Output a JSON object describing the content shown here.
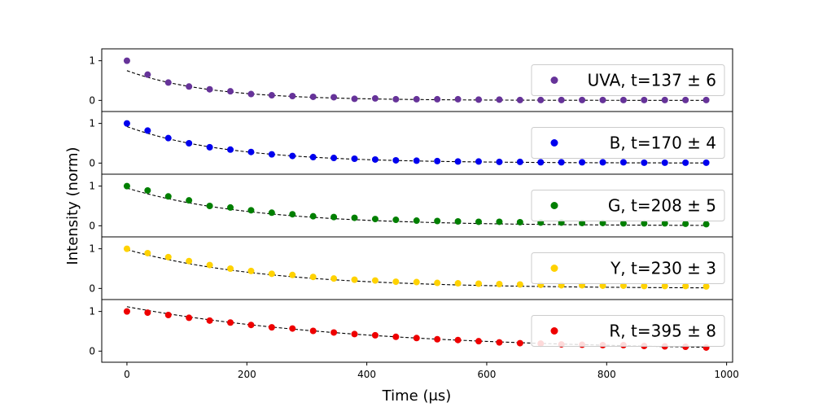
{
  "figure": {
    "xlabel": "Time (μs)",
    "ylabel": "Intensity (norm)"
  },
  "chart_data": {
    "type": "scatter",
    "xlabel": "Time (μs)",
    "ylabel": "Intensity (norm)",
    "xlim": [
      -42,
      1010
    ],
    "xticks": [
      0,
      200,
      400,
      600,
      800,
      1000
    ],
    "ylim": [
      -0.28,
      1.3
    ],
    "yticks": [
      0,
      1
    ],
    "grid": false,
    "legend_position": "right",
    "fit_line_style": "dashed",
    "fit_line_color": "#000000",
    "series": [
      {
        "name": "UVA, t=137 ± 6",
        "color": "#663399",
        "x": [
          0,
          34.5,
          69,
          103.5,
          138,
          172.5,
          207,
          241.5,
          276,
          310.5,
          345,
          379.5,
          414,
          448.5,
          483,
          517.5,
          552,
          586.5,
          621,
          655.5,
          690,
          724.5,
          759,
          793.5,
          828,
          862.5,
          897,
          931.5,
          966
        ],
        "y": [
          1.0,
          0.65,
          0.45,
          0.35,
          0.28,
          0.23,
          0.16,
          0.13,
          0.11,
          0.09,
          0.08,
          0.04,
          0.05,
          0.03,
          0.03,
          0.03,
          0.03,
          0.02,
          0.02,
          0.01,
          0.01,
          0.01,
          0.01,
          0.01,
          0.01,
          0.01,
          0.01,
          0.01,
          0.01
        ],
        "fit": {
          "amplitude": 0.75,
          "tau": 137
        }
      },
      {
        "name": "B, t=170 ± 4",
        "color": "#0000ee",
        "x": [
          0,
          34.5,
          69,
          103.5,
          138,
          172.5,
          207,
          241.5,
          276,
          310.5,
          345,
          379.5,
          414,
          448.5,
          483,
          517.5,
          552,
          586.5,
          621,
          655.5,
          690,
          724.5,
          759,
          793.5,
          828,
          862.5,
          897,
          931.5,
          966
        ],
        "y": [
          1.0,
          0.82,
          0.63,
          0.5,
          0.4,
          0.34,
          0.28,
          0.22,
          0.18,
          0.15,
          0.13,
          0.11,
          0.09,
          0.07,
          0.06,
          0.05,
          0.04,
          0.04,
          0.03,
          0.03,
          0.02,
          0.02,
          0.02,
          0.02,
          0.02,
          0.01,
          0.01,
          0.01,
          0.01
        ],
        "fit": {
          "amplitude": 0.92,
          "tau": 170
        }
      },
      {
        "name": "G, t=208 ± 5",
        "color": "#007f00",
        "x": [
          0,
          34.5,
          69,
          103.5,
          138,
          172.5,
          207,
          241.5,
          276,
          310.5,
          345,
          379.5,
          414,
          448.5,
          483,
          517.5,
          552,
          586.5,
          621,
          655.5,
          690,
          724.5,
          759,
          793.5,
          828,
          862.5,
          897,
          931.5,
          966
        ],
        "y": [
          1.0,
          0.89,
          0.74,
          0.64,
          0.5,
          0.46,
          0.39,
          0.33,
          0.29,
          0.24,
          0.22,
          0.2,
          0.17,
          0.15,
          0.13,
          0.12,
          0.11,
          0.1,
          0.1,
          0.09,
          0.08,
          0.08,
          0.07,
          0.07,
          0.06,
          0.06,
          0.06,
          0.05,
          0.04
        ],
        "fit": {
          "amplitude": 0.95,
          "tau": 208
        }
      },
      {
        "name": "Y, t=230 ± 3",
        "color": "#ffd200",
        "x": [
          0,
          34.5,
          69,
          103.5,
          138,
          172.5,
          207,
          241.5,
          276,
          310.5,
          345,
          379.5,
          414,
          448.5,
          483,
          517.5,
          552,
          586.5,
          621,
          655.5,
          690,
          724.5,
          759,
          793.5,
          828,
          862.5,
          897,
          931.5,
          966
        ],
        "y": [
          1.0,
          0.89,
          0.79,
          0.69,
          0.59,
          0.5,
          0.44,
          0.37,
          0.34,
          0.29,
          0.25,
          0.22,
          0.2,
          0.17,
          0.16,
          0.14,
          0.13,
          0.12,
          0.11,
          0.1,
          0.09,
          0.08,
          0.08,
          0.07,
          0.07,
          0.06,
          0.06,
          0.06,
          0.05
        ],
        "fit": {
          "amplitude": 0.98,
          "tau": 230
        }
      },
      {
        "name": "R, t=395 ± 8",
        "color": "#ee0000",
        "x": [
          0,
          34.5,
          69,
          103.5,
          138,
          172.5,
          207,
          241.5,
          276,
          310.5,
          345,
          379.5,
          414,
          448.5,
          483,
          517.5,
          552,
          586.5,
          621,
          655.5,
          690,
          724.5,
          759,
          793.5,
          828,
          862.5,
          897,
          931.5,
          966
        ],
        "y": [
          1.0,
          0.97,
          0.91,
          0.84,
          0.77,
          0.72,
          0.66,
          0.6,
          0.57,
          0.51,
          0.47,
          0.43,
          0.4,
          0.36,
          0.33,
          0.3,
          0.28,
          0.25,
          0.22,
          0.2,
          0.19,
          0.17,
          0.16,
          0.15,
          0.15,
          0.13,
          0.12,
          0.11,
          0.09
        ],
        "fit": {
          "amplitude": 1.12,
          "tau": 395
        }
      }
    ]
  }
}
